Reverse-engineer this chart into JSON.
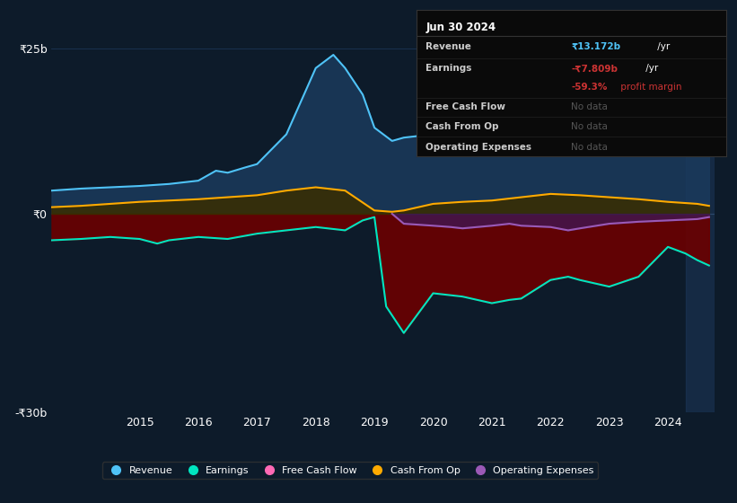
{
  "bg_color": "#0d1b2a",
  "plot_bg_color": "#0d1b2a",
  "grid_color": "#1e3a5f",
  "zero_line_color": "#4a6a8a",
  "ylim": [
    -30,
    30
  ],
  "xlim": [
    2013.5,
    2024.8
  ],
  "xticks": [
    2015,
    2016,
    2017,
    2018,
    2019,
    2020,
    2021,
    2022,
    2023,
    2024
  ],
  "revenue_x": [
    2013.5,
    2014.0,
    2014.5,
    2015.0,
    2015.5,
    2016.0,
    2016.3,
    2016.5,
    2016.8,
    2017.0,
    2017.5,
    2018.0,
    2018.3,
    2018.5,
    2018.8,
    2019.0,
    2019.3,
    2019.5,
    2020.0,
    2020.5,
    2021.0,
    2021.5,
    2022.0,
    2022.5,
    2023.0,
    2023.5,
    2024.0,
    2024.5,
    2024.7
  ],
  "revenue_y": [
    3.5,
    3.8,
    4.0,
    4.2,
    4.5,
    5.0,
    6.5,
    6.2,
    7.0,
    7.5,
    12.0,
    22.0,
    24.0,
    22.0,
    18.0,
    13.0,
    11.0,
    11.5,
    12.0,
    12.5,
    13.0,
    13.5,
    14.0,
    13.8,
    14.0,
    14.2,
    13.5,
    13.2,
    13.172
  ],
  "earnings_x": [
    2013.5,
    2014.0,
    2014.5,
    2015.0,
    2015.3,
    2015.5,
    2016.0,
    2016.5,
    2017.0,
    2017.5,
    2018.0,
    2018.5,
    2018.8,
    2019.0,
    2019.2,
    2019.5,
    2020.0,
    2020.5,
    2021.0,
    2021.3,
    2021.5,
    2022.0,
    2022.3,
    2022.5,
    2023.0,
    2023.5,
    2024.0,
    2024.3,
    2024.5,
    2024.7
  ],
  "earnings_y": [
    -4.0,
    -3.8,
    -3.5,
    -3.8,
    -4.5,
    -4.0,
    -3.5,
    -3.8,
    -3.0,
    -2.5,
    -2.0,
    -2.5,
    -1.0,
    -0.5,
    -14.0,
    -18.0,
    -12.0,
    -12.5,
    -13.5,
    -13.0,
    -12.8,
    -10.0,
    -9.5,
    -10.0,
    -11.0,
    -9.5,
    -5.0,
    -6.0,
    -7.0,
    -7.809
  ],
  "cashfromop_x": [
    2013.5,
    2014.0,
    2014.5,
    2015.0,
    2015.5,
    2016.0,
    2016.5,
    2017.0,
    2017.5,
    2018.0,
    2018.5,
    2019.0,
    2019.3,
    2019.5,
    2020.0,
    2020.5,
    2021.0,
    2021.5,
    2022.0,
    2022.5,
    2023.0,
    2023.5,
    2024.0,
    2024.5,
    2024.7
  ],
  "cashfromop_y": [
    1.0,
    1.2,
    1.5,
    1.8,
    2.0,
    2.2,
    2.5,
    2.8,
    3.5,
    4.0,
    3.5,
    0.5,
    0.3,
    0.5,
    1.5,
    1.8,
    2.0,
    2.5,
    3.0,
    2.8,
    2.5,
    2.2,
    1.8,
    1.5,
    1.2
  ],
  "opex_x": [
    2019.3,
    2019.5,
    2020.0,
    2020.3,
    2020.5,
    2021.0,
    2021.3,
    2021.5,
    2022.0,
    2022.3,
    2022.5,
    2023.0,
    2023.5,
    2024.0,
    2024.5,
    2024.7
  ],
  "opex_y": [
    0.0,
    -1.5,
    -1.8,
    -2.0,
    -2.2,
    -1.8,
    -1.5,
    -1.8,
    -2.0,
    -2.5,
    -2.2,
    -1.5,
    -1.2,
    -1.0,
    -0.8,
    -0.5
  ],
  "revenue_color": "#4fc3f7",
  "revenue_fill": "#1a3a5c",
  "earnings_color": "#00e5c0",
  "earnings_fill_neg": "#6b0000",
  "cashfromop_color": "#ffaa00",
  "cashfromop_fill": "#3a2d00",
  "opex_color": "#9b59b6",
  "opex_fill": "#3d1a5c",
  "freecash_color": "#ff69b4",
  "tooltip_date": "Jun 30 2024",
  "tooltip_revenue_label": "Revenue",
  "tooltip_revenue_value": "₹13.172b",
  "tooltip_revenue_suffix": " /yr",
  "tooltip_earnings_label": "Earnings",
  "tooltip_earnings_value": "-₹7.809b",
  "tooltip_earnings_suffix": " /yr",
  "tooltip_margin": "-59.3%",
  "tooltip_margin_suffix": " profit margin",
  "tooltip_fcf_label": "Free Cash Flow",
  "tooltip_fcf_value": "No data",
  "tooltip_cashop_label": "Cash From Op",
  "tooltip_cashop_value": "No data",
  "tooltip_opex_label": "Operating Expenses",
  "tooltip_opex_value": "No data",
  "highlight_color": "#1e3a5f",
  "legend_items": [
    "Revenue",
    "Earnings",
    "Free Cash Flow",
    "Cash From Op",
    "Operating Expenses"
  ],
  "legend_colors": [
    "#4fc3f7",
    "#00e5c0",
    "#ff69b4",
    "#ffaa00",
    "#9b59b6"
  ]
}
